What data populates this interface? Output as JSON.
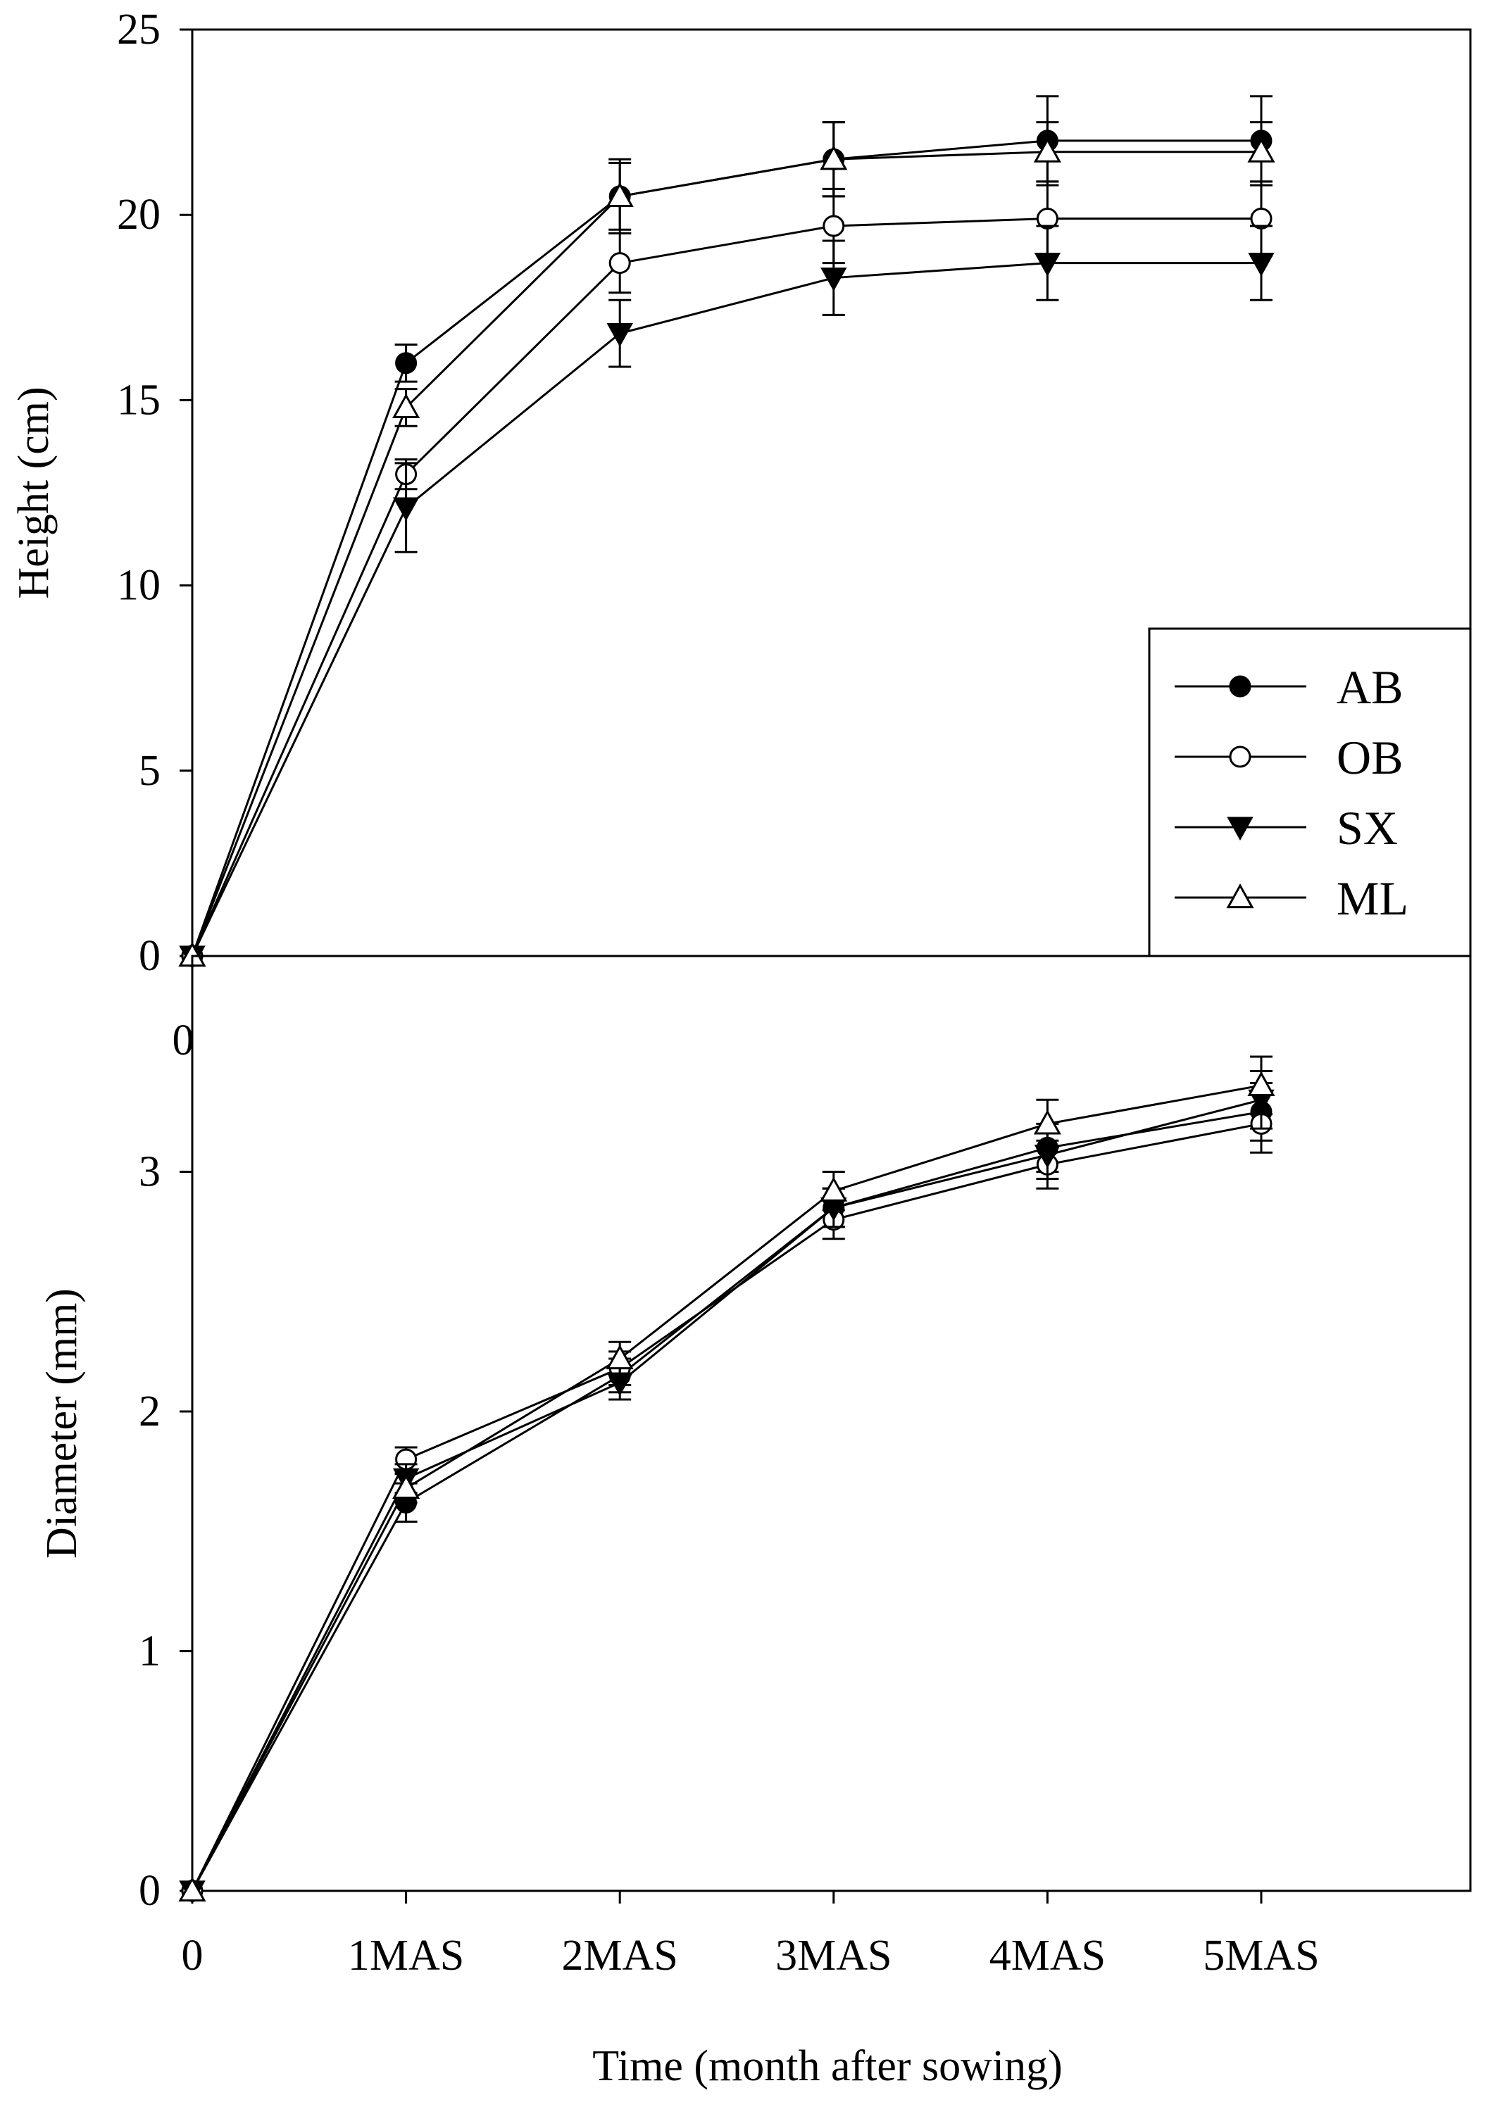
{
  "chart_data": [
    {
      "type": "line",
      "ylabel": "Height (cm)",
      "ylim": [
        0,
        25
      ],
      "yticks": [
        0,
        5,
        10,
        15,
        20,
        25
      ],
      "x": [
        0,
        1,
        2,
        3,
        4,
        5
      ],
      "series": [
        {
          "name": "AB",
          "marker": "filled-circle",
          "values": [
            0,
            16.0,
            20.5,
            21.5,
            22.0,
            22.0
          ],
          "errors": [
            0,
            0.5,
            1.0,
            1.0,
            1.2,
            1.2
          ]
        },
        {
          "name": "OB",
          "marker": "open-circle",
          "values": [
            0,
            13.0,
            18.7,
            19.7,
            19.9,
            19.9
          ],
          "errors": [
            0,
            0.4,
            0.8,
            1.0,
            1.0,
            1.0
          ]
        },
        {
          "name": "SX",
          "marker": "filled-triangle-down",
          "values": [
            0,
            12.1,
            16.8,
            18.3,
            18.7,
            18.7
          ],
          "errors": [
            0,
            1.2,
            0.9,
            1.0,
            1.0,
            1.0
          ]
        },
        {
          "name": "ML",
          "marker": "open-triangle-up",
          "values": [
            0,
            14.8,
            20.5,
            21.5,
            21.7,
            21.7
          ],
          "errors": [
            0,
            0.5,
            0.9,
            1.0,
            0.8,
            0.8
          ]
        }
      ],
      "legend": {
        "position": "right",
        "items": [
          "AB",
          "OB",
          "SX",
          "ML"
        ]
      }
    },
    {
      "type": "line",
      "ylabel": "Diameter (mm)",
      "xlabel": "Time (month after sowing)",
      "ylim": [
        0,
        3.9
      ],
      "yticks": [
        0,
        1,
        2,
        3
      ],
      "x": [
        0,
        1,
        2,
        3,
        4,
        5
      ],
      "xtick_labels": [
        "0",
        "1MAS",
        "2MAS",
        "3MAS",
        "4MAS",
        "5MAS"
      ],
      "top_tick_label": "0",
      "series": [
        {
          "name": "AB",
          "marker": "filled-circle",
          "values": [
            0,
            1.62,
            2.15,
            2.85,
            3.1,
            3.25
          ],
          "errors": [
            0,
            0.08,
            0.07,
            0.08,
            0.1,
            0.12
          ]
        },
        {
          "name": "OB",
          "marker": "open-circle",
          "values": [
            0,
            1.8,
            2.18,
            2.8,
            3.03,
            3.2
          ],
          "errors": [
            0,
            0.05,
            0.07,
            0.08,
            0.1,
            0.12
          ]
        },
        {
          "name": "SX",
          "marker": "filled-triangle-down",
          "values": [
            0,
            1.72,
            2.12,
            2.85,
            3.07,
            3.3
          ],
          "errors": [
            0,
            0.06,
            0.07,
            0.08,
            0.1,
            0.12
          ]
        },
        {
          "name": "ML",
          "marker": "open-triangle-up",
          "values": [
            0,
            1.68,
            2.22,
            2.92,
            3.2,
            3.36
          ],
          "errors": [
            0,
            0.06,
            0.07,
            0.08,
            0.1,
            0.12
          ]
        }
      ]
    }
  ]
}
